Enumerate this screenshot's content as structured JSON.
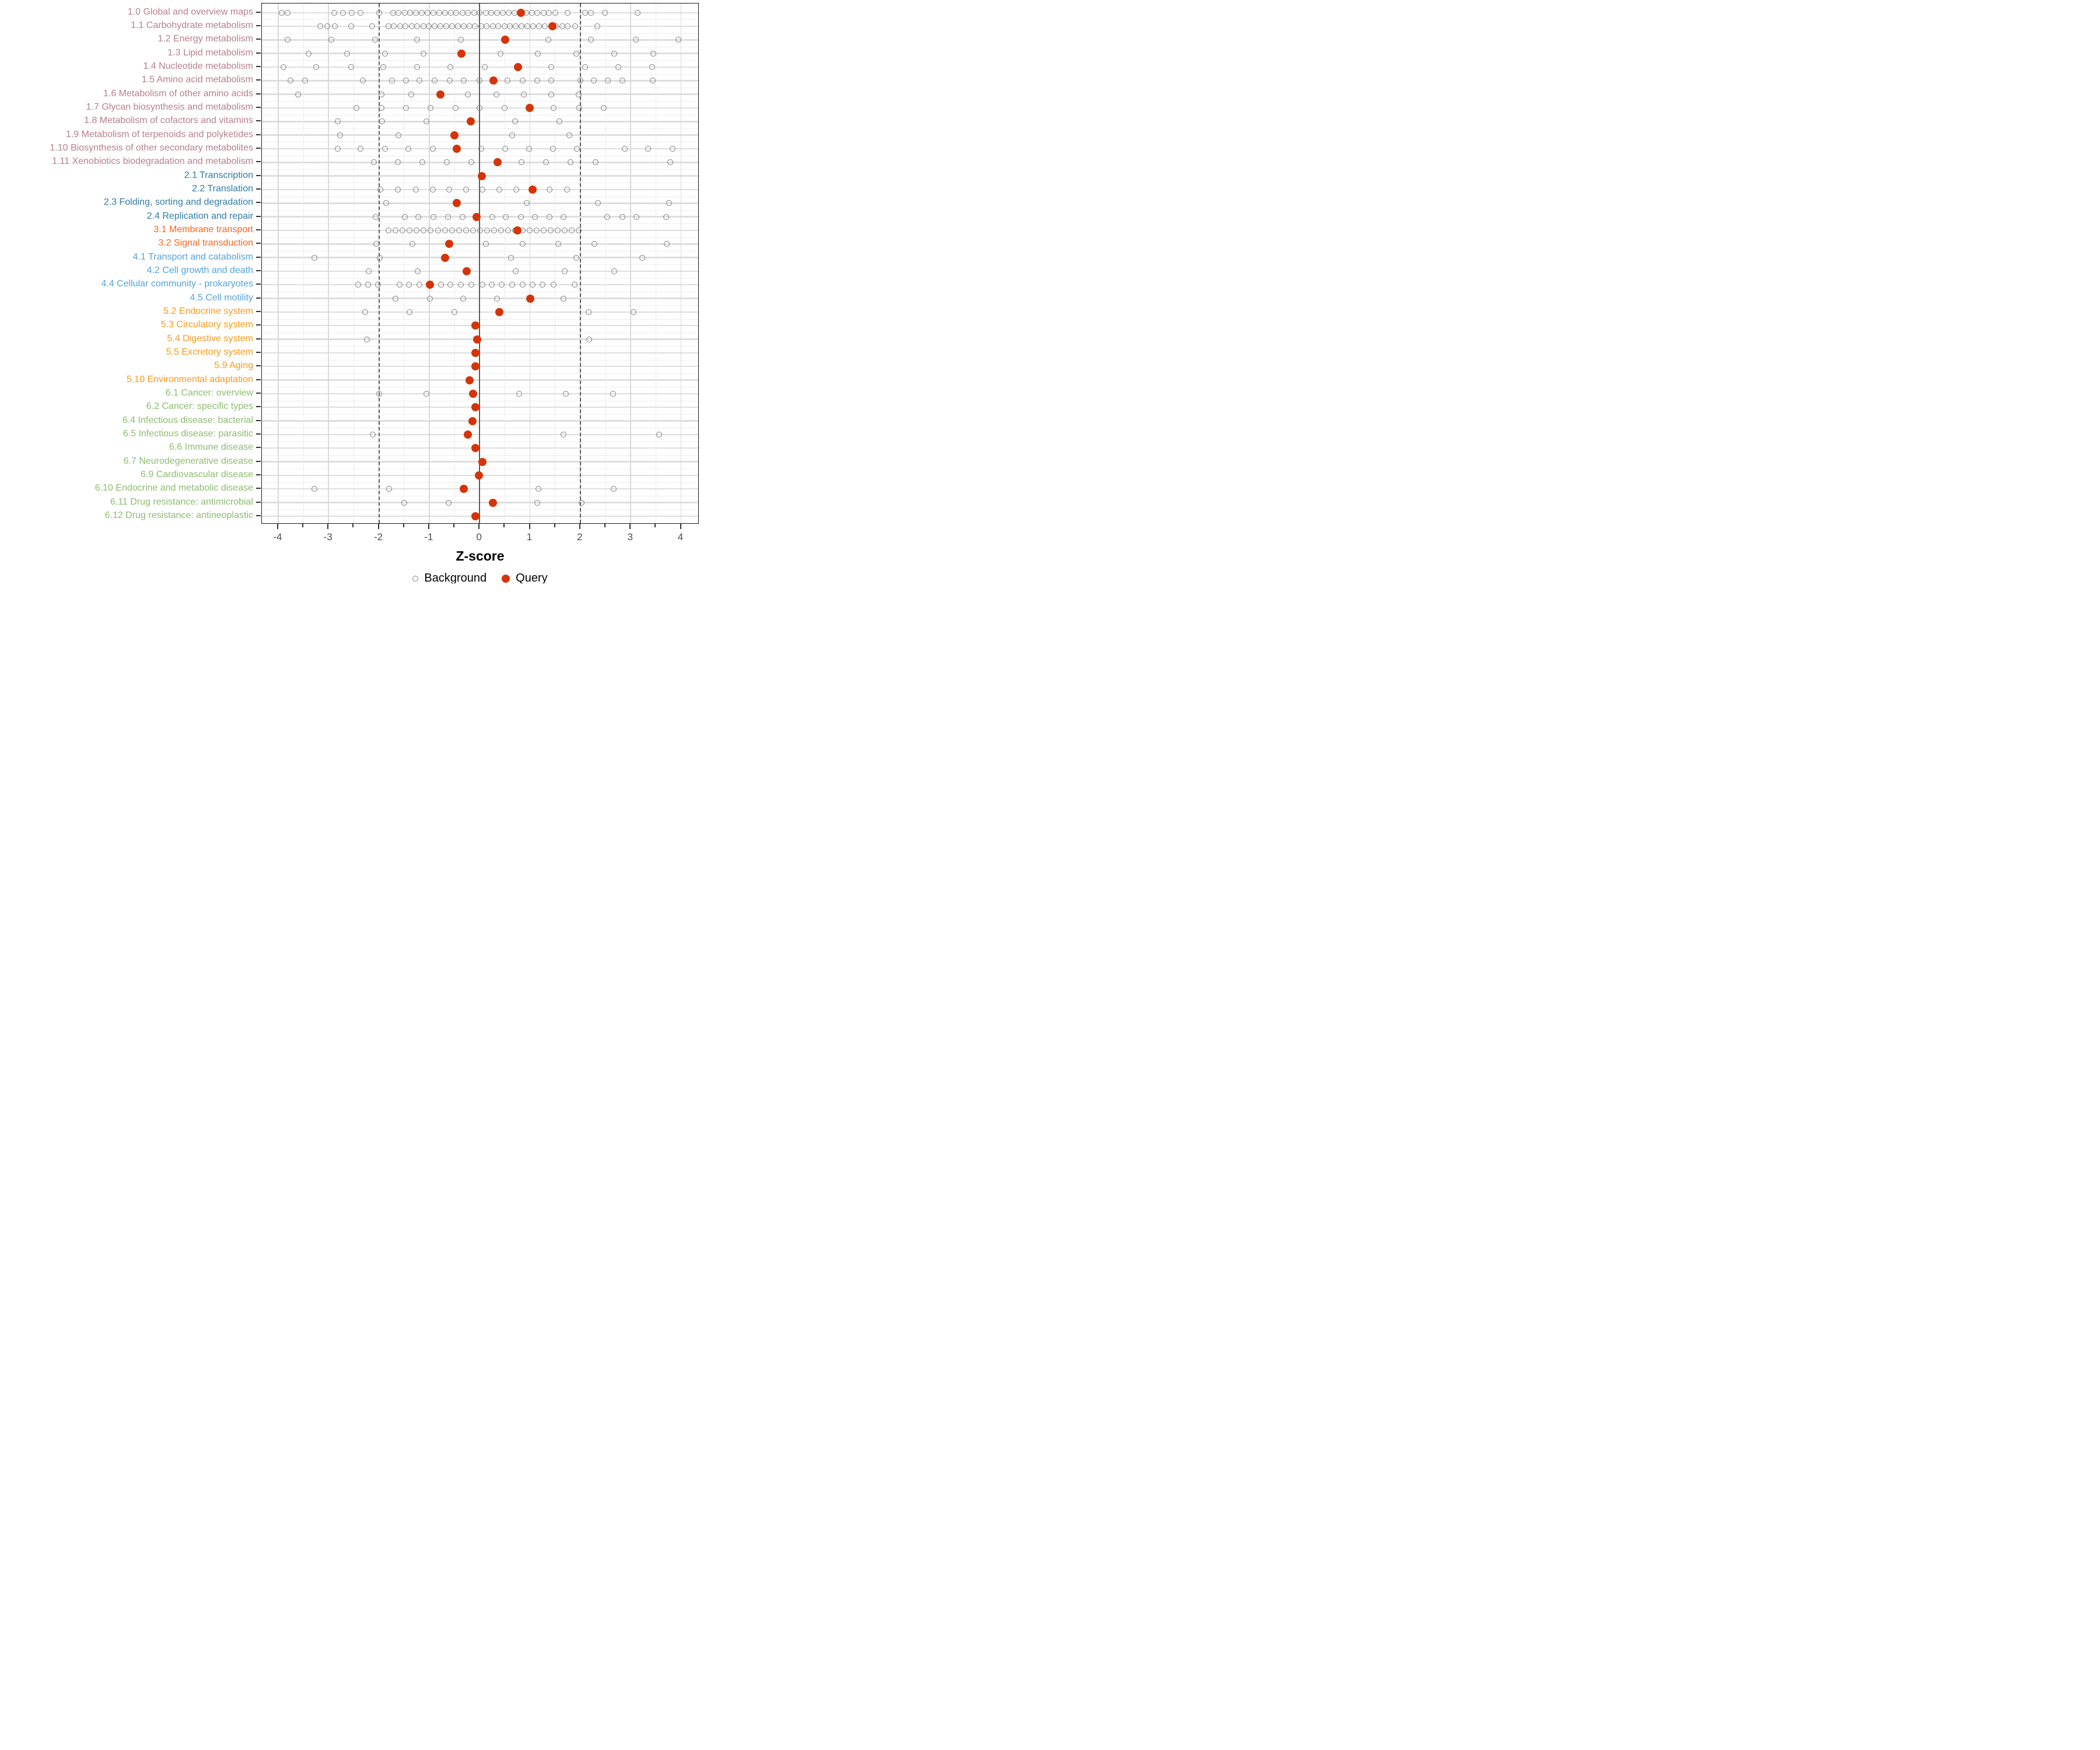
{
  "chart_data": {
    "type": "scatter",
    "title": "",
    "xlabel": "Z-score",
    "ylabel": "",
    "xlim": [
      -4.35,
      4.35
    ],
    "x_major_ticks": [
      -4,
      -3,
      -2,
      -1,
      0,
      1,
      2,
      3,
      4
    ],
    "x_tick_labels": [
      "-4",
      "-3",
      "-2",
      "-1",
      "0",
      "1",
      "2",
      "3",
      "4"
    ],
    "x_minor_ticks": [
      -3.5,
      -2.5,
      -1.5,
      -0.5,
      0.5,
      1.5,
      2.5,
      3.5
    ],
    "grid": "on",
    "reference_lines": {
      "solid_at": 0,
      "dashed_at": [
        -2,
        2
      ]
    },
    "legend_position": "bottom",
    "legend": [
      {
        "label": "Background",
        "marker": "open-circle",
        "color": "#7f7f7f"
      },
      {
        "label": "Query",
        "marker": "filled-circle",
        "color": "#d53408"
      }
    ],
    "group_colors": {
      "metabolism": "#b67f8d",
      "genetic-information-processing": "#2e7ba3",
      "environmental-information-processing": "#f4671e",
      "cellular-processes": "#55a3d7",
      "organismal-systems": "#f79a1c",
      "human-diseases": "#8dbb70"
    },
    "series": [
      {
        "name": "Background",
        "style": "open-circle",
        "color": "#7f7f7f"
      },
      {
        "name": "Query",
        "style": "filled-circle",
        "color": "#d53408"
      }
    ],
    "rows": [
      {
        "label": "1.0 Global and overview maps",
        "group": "metabolism",
        "query": 0.82,
        "background": [
          -3.93,
          -3.81,
          -2.89,
          -2.71,
          -2.54,
          -2.36,
          -2.0,
          -1.72,
          -1.61,
          -1.49,
          -1.38,
          -1.26,
          -1.15,
          -1.03,
          -0.92,
          -0.8,
          -0.69,
          -0.57,
          -0.46,
          -0.34,
          -0.23,
          -0.11,
          0.0,
          0.12,
          0.23,
          0.35,
          0.46,
          0.58,
          0.69,
          0.92,
          1.04,
          1.15,
          1.27,
          1.38,
          1.5,
          1.75,
          2.09,
          2.21,
          2.49,
          3.14
        ]
      },
      {
        "label": "1.1 Carbohydrate metabolism",
        "group": "metabolism",
        "query": 1.44,
        "background": [
          -3.16,
          -3.02,
          -2.87,
          -2.55,
          -2.13,
          -1.81,
          -1.7,
          -1.58,
          -1.47,
          -1.35,
          -1.24,
          -1.12,
          -1.01,
          -0.89,
          -0.78,
          -0.66,
          -0.55,
          -0.43,
          -0.32,
          -0.2,
          -0.09,
          0.03,
          0.14,
          0.26,
          0.37,
          0.49,
          0.6,
          0.72,
          0.83,
          0.95,
          1.06,
          1.18,
          1.29,
          1.52,
          1.64,
          1.75,
          1.9,
          2.34
        ]
      },
      {
        "label": "1.2 Energy metabolism",
        "group": "metabolism",
        "query": 0.51,
        "background": [
          -3.81,
          -2.95,
          -2.07,
          -1.24,
          -0.37,
          1.36,
          2.21,
          3.1,
          3.95
        ]
      },
      {
        "label": "1.3 Lipid metabolism",
        "group": "metabolism",
        "query": -0.36,
        "background": [
          -3.4,
          -2.63,
          -1.88,
          -1.11,
          0.41,
          1.16,
          1.92,
          2.67,
          3.45
        ]
      },
      {
        "label": "1.4 Nucleotide metabolism",
        "group": "metabolism",
        "query": 0.76,
        "background": [
          -3.9,
          -3.24,
          -2.55,
          -1.91,
          -1.24,
          -0.58,
          0.1,
          1.42,
          2.09,
          2.76,
          3.43
        ]
      },
      {
        "label": "1.5 Amino acid metabolism",
        "group": "metabolism",
        "query": 0.27,
        "background": [
          -3.75,
          -3.47,
          -2.32,
          -1.74,
          -1.46,
          -1.19,
          -0.89,
          -0.59,
          -0.31,
          0.0,
          0.55,
          0.85,
          1.14,
          1.42,
          2.0,
          2.27,
          2.55,
          2.84,
          3.44
        ]
      },
      {
        "label": "1.6 Metabolism of other amino acids",
        "group": "metabolism",
        "query": -0.78,
        "background": [
          -3.6,
          -1.95,
          -1.36,
          -0.23,
          0.33,
          0.88,
          1.42,
          1.97
        ]
      },
      {
        "label": "1.7 Glycan biosynthesis and metabolism",
        "group": "metabolism",
        "query": 0.99,
        "background": [
          -2.45,
          -1.95,
          -1.46,
          -0.97,
          -0.48,
          0.0,
          0.5,
          1.47,
          1.98,
          2.46
        ]
      },
      {
        "label": "1.8 Metabolism of cofactors and vitamins",
        "group": "metabolism",
        "query": -0.18,
        "background": [
          -2.82,
          -1.94,
          -1.06,
          0.71,
          1.59
        ]
      },
      {
        "label": "1.9 Metabolism of terpenoids and polyketides",
        "group": "metabolism",
        "query": -0.5,
        "background": [
          -2.77,
          -1.61,
          0.65,
          1.78
        ]
      },
      {
        "label": "1.10 Biosynthesis of other secondary metabolites",
        "group": "metabolism",
        "query": -0.45,
        "background": [
          -2.82,
          -2.36,
          -1.88,
          -1.41,
          -0.93,
          0.03,
          0.51,
          0.98,
          1.46,
          1.93,
          2.88,
          3.35,
          3.83
        ]
      },
      {
        "label": "1.11 Xenobiotics biodegradation and metabolism",
        "group": "metabolism",
        "query": 0.36,
        "background": [
          -2.1,
          -1.62,
          -1.14,
          -0.65,
          -0.16,
          0.83,
          1.32,
          1.81,
          2.3,
          3.79
        ]
      },
      {
        "label": "2.1 Transcription",
        "group": "genetic-information-processing",
        "query": 0.04,
        "background": []
      },
      {
        "label": "2.2 Translation",
        "group": "genetic-information-processing",
        "query": 1.05,
        "background": [
          -1.97,
          -1.62,
          -1.27,
          -0.93,
          -0.61,
          -0.27,
          0.06,
          0.39,
          0.73,
          1.39,
          1.73
        ]
      },
      {
        "label": "2.3 Folding, sorting and degradation",
        "group": "genetic-information-processing",
        "query": -0.45,
        "background": [
          -1.85,
          0.94,
          2.35,
          3.76
        ]
      },
      {
        "label": "2.4 Replication and repair",
        "group": "genetic-information-processing",
        "query": -0.06,
        "background": [
          -2.06,
          -1.48,
          -1.22,
          -0.92,
          -0.63,
          -0.34,
          0.25,
          0.52,
          0.82,
          1.1,
          1.39,
          1.67,
          2.54,
          2.83,
          3.11,
          3.7
        ]
      },
      {
        "label": "3.1 Membrane transport",
        "group": "environmental-information-processing",
        "query": 0.75,
        "background": [
          -1.81,
          -1.67,
          -1.53,
          -1.39,
          -1.25,
          -1.11,
          -0.97,
          -0.83,
          -0.69,
          -0.55,
          -0.41,
          -0.27,
          -0.13,
          0.01,
          0.15,
          0.29,
          0.43,
          0.57,
          0.71,
          0.85,
          0.99,
          1.13,
          1.27,
          1.41,
          1.55,
          1.69,
          1.83,
          1.97
        ]
      },
      {
        "label": "3.2 Signal transduction",
        "group": "environmental-information-processing",
        "query": -0.6,
        "background": [
          -2.05,
          -1.33,
          0.12,
          0.85,
          1.56,
          2.28,
          3.72
        ]
      },
      {
        "label": "4.1 Transport and catabolism",
        "group": "cellular-processes",
        "query": -0.68,
        "background": [
          -3.28,
          -1.98,
          0.62,
          1.92,
          3.23
        ]
      },
      {
        "label": "4.2 Cell growth and death",
        "group": "cellular-processes",
        "query": -0.26,
        "background": [
          -2.2,
          -1.23,
          0.72,
          1.69,
          2.67
        ]
      },
      {
        "label": "4.4 Cellular community - prokaryotes",
        "group": "cellular-processes",
        "query": -0.99,
        "background": [
          -2.41,
          -2.21,
          -2.02,
          -1.59,
          -1.4,
          -1.2,
          -0.77,
          -0.58,
          -0.37,
          -0.17,
          0.05,
          0.24,
          0.44,
          0.65,
          0.85,
          1.05,
          1.25,
          1.47,
          1.89
        ]
      },
      {
        "label": "4.5 Cell motility",
        "group": "cellular-processes",
        "query": 1.01,
        "background": [
          -1.67,
          -0.99,
          -0.33,
          0.34,
          1.67
        ]
      },
      {
        "label": "5.2 Endocrine system",
        "group": "organismal-systems",
        "query": 0.39,
        "background": [
          -2.27,
          -1.39,
          -0.5,
          2.16,
          3.05
        ]
      },
      {
        "label": "5.3 Circulatory system",
        "group": "organismal-systems",
        "query": -0.08,
        "background": []
      },
      {
        "label": "5.4 Digestive system",
        "group": "organismal-systems",
        "query": -0.05,
        "background": [
          -2.24,
          2.18
        ]
      },
      {
        "label": "5.5 Excretory system",
        "group": "organismal-systems",
        "query": -0.08,
        "background": []
      },
      {
        "label": "5.9 Aging",
        "group": "organismal-systems",
        "query": -0.08,
        "background": []
      },
      {
        "label": "5.10 Environmental adaptation",
        "group": "organismal-systems",
        "query": -0.2,
        "background": []
      },
      {
        "label": "6.1 Cancer: overview",
        "group": "human-diseases",
        "query": -0.13,
        "background": [
          -1.99,
          -1.06,
          0.79,
          1.71,
          2.65
        ]
      },
      {
        "label": "6.2 Cancer: specific types",
        "group": "human-diseases",
        "query": -0.08,
        "background": []
      },
      {
        "label": "6.4 Infectious disease: bacterial",
        "group": "human-diseases",
        "query": -0.14,
        "background": []
      },
      {
        "label": "6.5 Infectious disease: parasitic",
        "group": "human-diseases",
        "query": -0.23,
        "background": [
          -2.12,
          1.67,
          3.56
        ]
      },
      {
        "label": "6.6 Immune disease",
        "group": "human-diseases",
        "query": -0.08,
        "background": []
      },
      {
        "label": "6.7 Neurodegenerative disease",
        "group": "human-diseases",
        "query": 0.06,
        "background": []
      },
      {
        "label": "6.9 Cardiovascular disease",
        "group": "human-diseases",
        "query": -0.01,
        "background": []
      },
      {
        "label": "6.10 Endocrine and metabolic disease",
        "group": "human-diseases",
        "query": -0.32,
        "background": [
          -3.28,
          -1.8,
          1.17,
          2.66
        ]
      },
      {
        "label": "6.11 Drug resistance: antimicrobial",
        "group": "human-diseases",
        "query": 0.26,
        "background": [
          -1.5,
          -0.62,
          1.15,
          2.03
        ]
      },
      {
        "label": "6.12 Drug resistance: antineoplastic",
        "group": "human-diseases",
        "query": -0.08,
        "background": []
      }
    ]
  },
  "colors": {
    "query": "#d53408",
    "background_stroke": "#7f7f7f",
    "axis_text": "#4d4d4d",
    "panel_border": "#1a1a1a",
    "grid_major": "#dedede",
    "grid_minor": "#efefef",
    "zero_line": "#5c5c5c",
    "threshold_line": "#5a5a5a"
  }
}
